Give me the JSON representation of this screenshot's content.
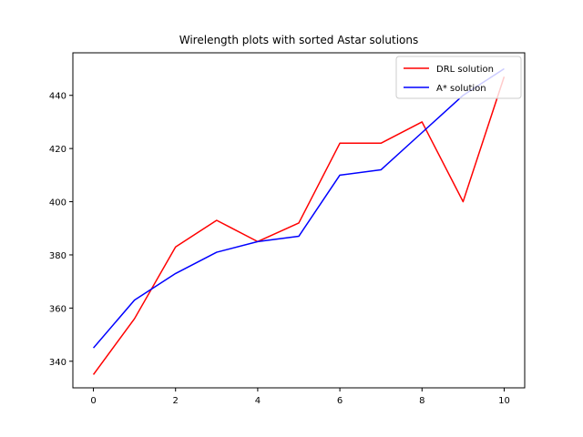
{
  "chart_data": {
    "type": "line",
    "title": "Wirelength plots with sorted Astar solutions",
    "xlabel": "",
    "ylabel": "",
    "xlim": [
      -0.5,
      10.5
    ],
    "ylim": [
      330,
      456
    ],
    "xticks": [
      0,
      2,
      4,
      6,
      8,
      10
    ],
    "yticks": [
      340,
      360,
      380,
      400,
      420,
      440
    ],
    "grid": false,
    "legend_position": "top-right",
    "x": [
      0,
      1,
      2,
      3,
      4,
      5,
      6,
      7,
      8,
      9,
      10
    ],
    "series": [
      {
        "name": "DRL solution",
        "color": "#ff0000",
        "values": [
          335,
          356,
          383,
          393,
          385,
          392,
          422,
          422,
          430,
          400,
          447
        ]
      },
      {
        "name": "A* solution",
        "color": "#0000ff",
        "values": [
          345,
          363,
          373,
          381,
          385,
          387,
          410,
          412,
          426,
          440,
          450
        ]
      }
    ]
  }
}
